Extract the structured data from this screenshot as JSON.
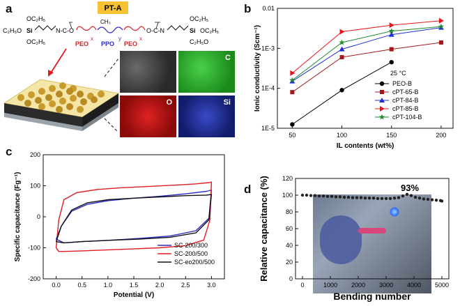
{
  "panel_a": {
    "letter": "a",
    "tag": "PT-A",
    "segments": [
      "PEO",
      "PPO",
      "PEO"
    ],
    "subscripts": [
      "x",
      "y",
      "x"
    ],
    "end_groups": [
      "C₂H₅O",
      "OC₂H₅",
      "OC₂H₅",
      "OC₂H₅",
      "OC₂H₅",
      "C₂H₅O"
    ],
    "linkers": [
      "N-C-O",
      "O-C-N"
    ],
    "methyl": "CH₃",
    "maps": [
      "C",
      "O",
      "Si"
    ]
  },
  "panel_b_letter": "b",
  "panel_c_letter": "c",
  "panel_d_letter": "d",
  "chart_data": [
    {
      "type": "line",
      "panel": "b",
      "xlabel": "IL contents (wt%)",
      "ylabel": "Ionic conductivity (Scm⁻¹)",
      "annotation": "25 °C",
      "x": [
        50,
        100,
        150,
        200
      ],
      "xticks": [
        "50",
        "100",
        "150",
        "200"
      ],
      "yscale": "log",
      "ylim": [
        1e-05,
        0.01
      ],
      "yticks": [
        "1E-5",
        "1E-4",
        "1E-3",
        "0.01"
      ],
      "legend_position": "bottom-right",
      "series": [
        {
          "name": "PEO-B",
          "color": "#000000",
          "marker": "circle",
          "x": [
            50,
            100,
            150
          ],
          "values": [
            1.25e-05,
            9e-05,
            0.00045
          ]
        },
        {
          "name": "cPT-65-B",
          "color": "#a4161a",
          "marker": "square",
          "x": [
            50,
            100,
            150,
            200
          ],
          "values": [
            8e-05,
            0.0006,
            0.00095,
            0.0014
          ]
        },
        {
          "name": "cPT-84-B",
          "color": "#1f2fd6",
          "marker": "triangle-up",
          "x": [
            50,
            100,
            150,
            200
          ],
          "values": [
            0.00015,
            0.00095,
            0.0022,
            0.0033
          ]
        },
        {
          "name": "cPT-85-B",
          "color": "#e8141a",
          "marker": "triangle-right",
          "x": [
            50,
            100,
            150,
            200
          ],
          "values": [
            0.00024,
            0.0026,
            0.0038,
            0.0049
          ]
        },
        {
          "name": "cPT-104-B",
          "color": "#1b8a2e",
          "marker": "star",
          "x": [
            50,
            100,
            150,
            200
          ],
          "values": [
            0.00016,
            0.0014,
            0.0027,
            0.0035
          ]
        }
      ]
    },
    {
      "type": "line",
      "panel": "c",
      "xlabel": "Potential (V)",
      "ylabel": "Specific capacitance (Fg⁻¹)",
      "xlim": [
        -0.25,
        3.25
      ],
      "ylim": [
        -200,
        200
      ],
      "xticks": [
        "0.0",
        "0.5",
        "1.0",
        "1.5",
        "2.0",
        "2.5",
        "3.0"
      ],
      "yticks": [
        "-200",
        "-100",
        "0",
        "100",
        "200"
      ],
      "legend_position": "bottom-right",
      "series": [
        {
          "name": "SC-200/300",
          "color": "#2c2cc8",
          "x": [
            0,
            0.1,
            0.3,
            0.6,
            1.0,
            1.5,
            2.0,
            2.5,
            2.9,
            3.0,
            2.95,
            2.7,
            2.2,
            1.6,
            1.0,
            0.5,
            0.15,
            0
          ],
          "values": [
            -72,
            -30,
            18,
            40,
            52,
            60,
            66,
            74,
            82,
            86,
            -5,
            -45,
            -62,
            -70,
            -76,
            -80,
            -84,
            -72
          ]
        },
        {
          "name": "SC-200/500",
          "color": "#e01b22",
          "x": [
            0,
            0.05,
            0.15,
            0.4,
            0.8,
            1.3,
            1.8,
            2.3,
            2.7,
            2.95,
            3.0,
            2.97,
            2.85,
            2.5,
            2.0,
            1.4,
            0.8,
            0.3,
            0.05,
            0
          ],
          "values": [
            -100,
            -10,
            55,
            78,
            88,
            94,
            98,
            102,
            106,
            110,
            112,
            -10,
            -75,
            -93,
            -100,
            -104,
            -108,
            -111,
            -112,
            -100
          ]
        },
        {
          "name": "SC-eo200/500",
          "color": "#111111",
          "x": [
            0,
            0.1,
            0.3,
            0.6,
            1.0,
            1.5,
            2.0,
            2.5,
            2.9,
            3.0,
            2.95,
            2.7,
            2.2,
            1.6,
            1.0,
            0.5,
            0.15,
            0
          ],
          "values": [
            -80,
            -30,
            22,
            45,
            55,
            60,
            64,
            68,
            70,
            72,
            -10,
            -52,
            -66,
            -72,
            -76,
            -80,
            -84,
            -80
          ]
        }
      ]
    },
    {
      "type": "scatter",
      "panel": "d",
      "xlabel": "Bending number",
      "ylabel": "Relative capacitance (%)",
      "annotation": "93%",
      "xlim": [
        -250,
        5250
      ],
      "ylim": [
        0,
        120
      ],
      "xticks": [
        "0",
        "1000",
        "2000",
        "3000",
        "4000",
        "5000"
      ],
      "yticks": [
        "0",
        "20",
        "40",
        "60",
        "80",
        "100",
        "120"
      ],
      "x": [
        0,
        150,
        300,
        450,
        600,
        750,
        900,
        1050,
        1200,
        1350,
        1500,
        1650,
        1800,
        1950,
        2100,
        2250,
        2400,
        2550,
        2700,
        2850,
        3000,
        3150,
        3300,
        3450,
        3600,
        3750,
        3900,
        4050,
        4200,
        4350,
        4500,
        4650,
        4800,
        4950,
        5000
      ],
      "values": [
        100,
        100,
        99.5,
        99.5,
        99,
        99,
        98.5,
        98.5,
        98,
        98,
        97.5,
        97.5,
        97,
        97,
        97,
        96.5,
        96.5,
        96.5,
        96,
        96,
        96,
        96,
        96.5,
        97,
        99,
        101,
        99.5,
        97.5,
        96.5,
        95.5,
        95,
        94.5,
        94,
        93.5,
        93
      ]
    }
  ]
}
